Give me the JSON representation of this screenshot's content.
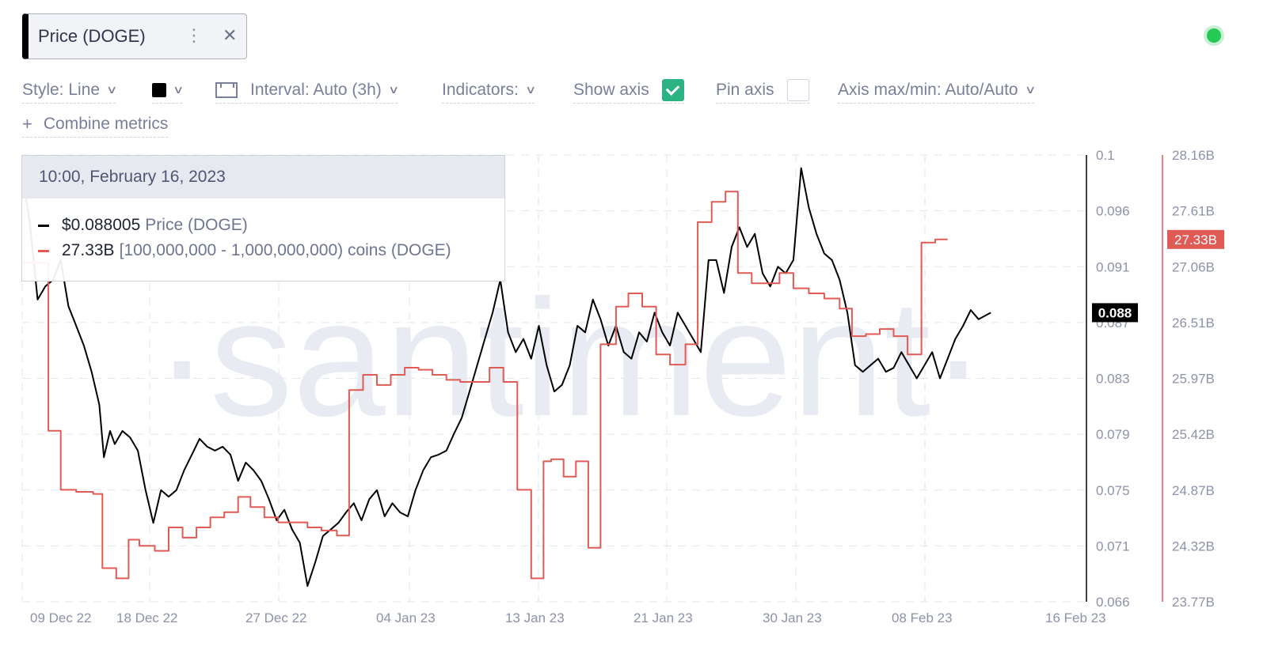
{
  "metric_tag": {
    "label": "Price (DOGE)",
    "more_icon": "more-vertical-icon",
    "close_icon": "close-icon"
  },
  "status": {
    "color": "#26c953"
  },
  "toolbar": {
    "style": "Style: Line",
    "interval": "Interval: Auto (3h)",
    "indicators": "Indicators:",
    "show_axis": "Show axis",
    "show_axis_checked": true,
    "pin_axis": "Pin axis",
    "pin_axis_checked": false,
    "axis_maxmin": "Axis max/min: Auto/Auto",
    "combine": "Combine metrics",
    "swatch_color": "#000000"
  },
  "tooltip": {
    "datetime": "10:00, February 16, 2023",
    "rows": [
      {
        "value": "$0.088005",
        "name": "Price (DOGE)",
        "color": "#000000"
      },
      {
        "value": "27.33B",
        "name": "[100,000,000 - 1,000,000,000) coins (DOGE)",
        "color": "#e05b55"
      }
    ]
  },
  "watermark": "·santiment·",
  "chart_data": {
    "type": "line",
    "x_ticks": [
      "09 Dec 22",
      "18 Dec 22",
      "27 Dec 22",
      "04 Jan 23",
      "13 Jan 23",
      "21 Jan 23",
      "30 Jan 23",
      "08 Feb 23",
      "16 Feb 23"
    ],
    "y_left": {
      "ticks": [
        "0.1",
        "0.096",
        "0.091",
        "0.087",
        "0.083",
        "0.079",
        "0.075",
        "0.071",
        "0.066"
      ],
      "range": [
        0.066,
        0.1
      ],
      "current_label": "0.088",
      "color": "#000000"
    },
    "y_right": {
      "ticks": [
        "28.16B",
        "27.61B",
        "27.06B",
        "26.51B",
        "25.97B",
        "25.42B",
        "24.87B",
        "24.32B",
        "23.77B"
      ],
      "range": [
        23.77,
        28.16
      ],
      "current_label": "27.33B",
      "color": "#e05b55"
    },
    "grid": true,
    "series": [
      {
        "name": "Price (DOGE)",
        "color": "#000000",
        "step": false,
        "unit": "USD",
        "points": [
          [
            0,
            0.0986
          ],
          [
            0.5,
            0.0948
          ],
          [
            1,
            0.089
          ],
          [
            1.5,
            0.09
          ],
          [
            2,
            0.0905
          ],
          [
            2.5,
            0.092
          ],
          [
            3,
            0.0885
          ],
          [
            3.5,
            0.087
          ],
          [
            4,
            0.0855
          ],
          [
            4.5,
            0.0835
          ],
          [
            5,
            0.081
          ],
          [
            5.3,
            0.077
          ],
          [
            5.7,
            0.079
          ],
          [
            6,
            0.078
          ],
          [
            6.5,
            0.079
          ],
          [
            7,
            0.0785
          ],
          [
            7.5,
            0.0775
          ],
          [
            8,
            0.0745
          ],
          [
            8.5,
            0.072
          ],
          [
            9,
            0.0745
          ],
          [
            9.5,
            0.074
          ],
          [
            10,
            0.0745
          ],
          [
            10.5,
            0.076
          ],
          [
            11,
            0.0772
          ],
          [
            11.5,
            0.0784
          ],
          [
            12,
            0.0778
          ],
          [
            12.5,
            0.0775
          ],
          [
            13,
            0.0778
          ],
          [
            13.5,
            0.0772
          ],
          [
            14,
            0.0752
          ],
          [
            14.5,
            0.0766
          ],
          [
            15,
            0.076
          ],
          [
            15.5,
            0.0752
          ],
          [
            16,
            0.0738
          ],
          [
            16.5,
            0.0722
          ],
          [
            17,
            0.073
          ],
          [
            17.5,
            0.0715
          ],
          [
            18,
            0.0705
          ],
          [
            18.5,
            0.0672
          ],
          [
            19,
            0.069
          ],
          [
            19.5,
            0.071
          ],
          [
            20,
            0.0715
          ],
          [
            20.5,
            0.072
          ],
          [
            21,
            0.0728
          ],
          [
            21.5,
            0.0735
          ],
          [
            22,
            0.0722
          ],
          [
            22.5,
            0.0738
          ],
          [
            23,
            0.0745
          ],
          [
            23.5,
            0.0725
          ],
          [
            24,
            0.0735
          ],
          [
            24.5,
            0.0728
          ],
          [
            25,
            0.0725
          ],
          [
            25.5,
            0.0745
          ],
          [
            26,
            0.076
          ],
          [
            26.5,
            0.077
          ],
          [
            27,
            0.0772
          ],
          [
            27.5,
            0.0775
          ],
          [
            28,
            0.0788
          ],
          [
            28.5,
            0.08
          ],
          [
            29,
            0.082
          ],
          [
            29.5,
            0.084
          ],
          [
            30,
            0.086
          ],
          [
            30.5,
            0.088
          ],
          [
            31,
            0.0905
          ],
          [
            31.5,
            0.0865
          ],
          [
            32,
            0.085
          ],
          [
            32.5,
            0.086
          ],
          [
            33,
            0.0845
          ],
          [
            33.5,
            0.087
          ],
          [
            34,
            0.084
          ],
          [
            34.5,
            0.082
          ],
          [
            35,
            0.0825
          ],
          [
            35.5,
            0.084
          ],
          [
            36,
            0.087
          ],
          [
            36.5,
            0.0865
          ],
          [
            37,
            0.089
          ],
          [
            37.5,
            0.0875
          ],
          [
            38,
            0.0855
          ],
          [
            38.5,
            0.087
          ],
          [
            39,
            0.085
          ],
          [
            39.5,
            0.0845
          ],
          [
            40,
            0.0865
          ],
          [
            40.5,
            0.0858
          ],
          [
            41,
            0.088
          ],
          [
            41.5,
            0.0865
          ],
          [
            42,
            0.0855
          ],
          [
            42.5,
            0.088
          ],
          [
            43,
            0.087
          ],
          [
            43.5,
            0.086
          ],
          [
            44,
            0.085
          ],
          [
            44.5,
            0.092
          ],
          [
            45,
            0.092
          ],
          [
            45.5,
            0.0895
          ],
          [
            46,
            0.093
          ],
          [
            46.5,
            0.0945
          ],
          [
            47,
            0.093
          ],
          [
            47.5,
            0.094
          ],
          [
            48,
            0.091
          ],
          [
            48.5,
            0.09
          ],
          [
            49,
            0.0915
          ],
          [
            49.5,
            0.091
          ],
          [
            50,
            0.092
          ],
          [
            50.5,
            0.099
          ],
          [
            51,
            0.096
          ],
          [
            51.5,
            0.094
          ],
          [
            52,
            0.0925
          ],
          [
            52.5,
            0.092
          ],
          [
            53,
            0.0905
          ],
          [
            53.5,
            0.088
          ],
          [
            54,
            0.084
          ],
          [
            54.5,
            0.0835
          ],
          [
            55,
            0.084
          ],
          [
            55.5,
            0.0845
          ],
          [
            56,
            0.0835
          ],
          [
            56.5,
            0.0838
          ],
          [
            57,
            0.085
          ],
          [
            57.5,
            0.084
          ],
          [
            58,
            0.083
          ],
          [
            58.5,
            0.084
          ],
          [
            59,
            0.085
          ],
          [
            59.5,
            0.083
          ],
          [
            60,
            0.0845
          ],
          [
            60.5,
            0.086
          ],
          [
            61,
            0.087
          ],
          [
            61.5,
            0.0882
          ],
          [
            62,
            0.0875
          ],
          [
            62.8,
            0.088
          ]
        ]
      },
      {
        "name": "[100,000,000 - 1,000,000,000) coins (DOGE)",
        "color": "#e05b55",
        "step": true,
        "unit": "B coins",
        "points": [
          [
            0,
            27.1
          ],
          [
            1.7,
            27.1
          ],
          [
            1.7,
            25.45
          ],
          [
            2.5,
            25.45
          ],
          [
            2.5,
            24.87
          ],
          [
            3.5,
            24.87
          ],
          [
            3.5,
            24.85
          ],
          [
            4.6,
            24.85
          ],
          [
            4.6,
            24.83
          ],
          [
            5.2,
            24.83
          ],
          [
            5.2,
            24.1
          ],
          [
            6.1,
            24.1
          ],
          [
            6.1,
            24.0
          ],
          [
            6.9,
            24.0
          ],
          [
            6.9,
            24.38
          ],
          [
            7.6,
            24.38
          ],
          [
            7.6,
            24.32
          ],
          [
            8.6,
            24.32
          ],
          [
            8.6,
            24.27
          ],
          [
            9.5,
            24.27
          ],
          [
            9.5,
            24.5
          ],
          [
            10.4,
            24.5
          ],
          [
            10.4,
            24.4
          ],
          [
            11.3,
            24.4
          ],
          [
            11.3,
            24.5
          ],
          [
            12.2,
            24.5
          ],
          [
            12.2,
            24.6
          ],
          [
            13.1,
            24.6
          ],
          [
            13.1,
            24.65
          ],
          [
            14.0,
            24.65
          ],
          [
            14.0,
            24.8
          ],
          [
            14.8,
            24.8
          ],
          [
            14.8,
            24.7
          ],
          [
            15.7,
            24.7
          ],
          [
            15.7,
            24.6
          ],
          [
            16.6,
            24.6
          ],
          [
            16.6,
            24.55
          ],
          [
            18.5,
            24.55
          ],
          [
            18.5,
            24.5
          ],
          [
            19.4,
            24.5
          ],
          [
            19.4,
            24.47
          ],
          [
            20.4,
            24.47
          ],
          [
            20.4,
            24.42
          ],
          [
            21.2,
            24.42
          ],
          [
            21.2,
            25.85
          ],
          [
            22.1,
            25.85
          ],
          [
            22.1,
            26.0
          ],
          [
            23.0,
            26.0
          ],
          [
            23.0,
            25.9
          ],
          [
            23.9,
            25.9
          ],
          [
            23.9,
            26.0
          ],
          [
            24.8,
            26.0
          ],
          [
            24.8,
            26.07
          ],
          [
            25.7,
            26.07
          ],
          [
            25.7,
            26.05
          ],
          [
            26.6,
            26.05
          ],
          [
            26.6,
            26.0
          ],
          [
            27.5,
            26.0
          ],
          [
            27.5,
            25.95
          ],
          [
            28.4,
            25.95
          ],
          [
            28.4,
            25.93
          ],
          [
            30.3,
            25.93
          ],
          [
            30.3,
            26.07
          ],
          [
            31.2,
            26.07
          ],
          [
            31.2,
            25.93
          ],
          [
            32.1,
            25.93
          ],
          [
            32.1,
            24.87
          ],
          [
            33.0,
            24.87
          ],
          [
            33.0,
            24.0
          ],
          [
            33.8,
            24.0
          ],
          [
            33.8,
            25.15
          ],
          [
            34.3,
            25.15
          ],
          [
            34.3,
            25.17
          ],
          [
            35.1,
            25.17
          ],
          [
            35.1,
            25.0
          ],
          [
            35.9,
            25.0
          ],
          [
            35.9,
            25.15
          ],
          [
            36.7,
            25.15
          ],
          [
            36.7,
            24.3
          ],
          [
            37.5,
            24.3
          ],
          [
            37.5,
            26.3
          ],
          [
            38.5,
            26.3
          ],
          [
            38.5,
            26.67
          ],
          [
            39.3,
            26.67
          ],
          [
            39.3,
            26.8
          ],
          [
            40.2,
            26.8
          ],
          [
            40.2,
            26.67
          ],
          [
            41.1,
            26.67
          ],
          [
            41.1,
            26.2
          ],
          [
            42.0,
            26.2
          ],
          [
            42.0,
            26.1
          ],
          [
            43.0,
            26.1
          ],
          [
            43.0,
            26.3
          ],
          [
            43.8,
            26.3
          ],
          [
            43.8,
            27.5
          ],
          [
            44.7,
            27.5
          ],
          [
            44.7,
            27.7
          ],
          [
            45.6,
            27.7
          ],
          [
            45.6,
            27.8
          ],
          [
            46.4,
            27.8
          ],
          [
            46.4,
            27.0
          ],
          [
            47.3,
            27.0
          ],
          [
            47.3,
            26.9
          ],
          [
            48.2,
            26.9
          ],
          [
            48.2,
            26.9
          ],
          [
            49.1,
            26.9
          ],
          [
            49.1,
            27.0
          ],
          [
            50.0,
            27.0
          ],
          [
            50.0,
            26.85
          ],
          [
            51.0,
            26.85
          ],
          [
            51.0,
            26.8
          ],
          [
            52.0,
            26.8
          ],
          [
            52.0,
            26.75
          ],
          [
            53.0,
            26.75
          ],
          [
            53.0,
            26.65
          ],
          [
            53.8,
            26.65
          ],
          [
            53.8,
            26.38
          ],
          [
            54.7,
            26.38
          ],
          [
            54.7,
            26.4
          ],
          [
            55.6,
            26.4
          ],
          [
            55.6,
            26.45
          ],
          [
            56.5,
            26.45
          ],
          [
            56.5,
            26.38
          ],
          [
            57.4,
            26.38
          ],
          [
            57.4,
            26.2
          ],
          [
            58.3,
            26.2
          ],
          [
            58.3,
            27.3
          ],
          [
            59.2,
            27.3
          ],
          [
            59.2,
            27.33
          ],
          [
            60.0,
            27.33
          ]
        ]
      }
    ]
  }
}
